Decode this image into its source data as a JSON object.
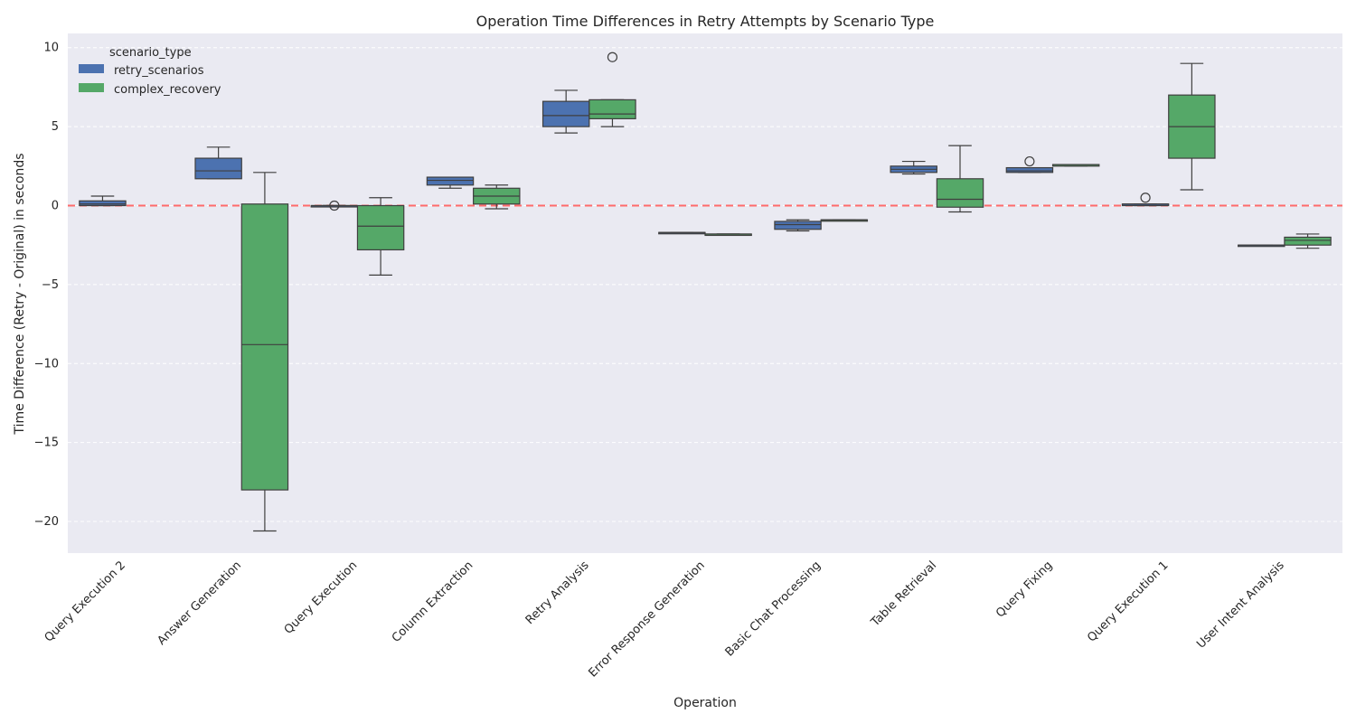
{
  "chart_data": {
    "type": "box",
    "title": "Operation Time Differences in Retry Attempts by Scenario Type",
    "xlabel": "Operation",
    "ylabel": "Time Difference (Retry - Original) in seconds",
    "ylim": [
      -22,
      10.9
    ],
    "yticks": [
      10,
      5,
      0,
      -5,
      -10,
      -15,
      -20
    ],
    "ytick_labels": [
      "10",
      "5",
      "0",
      "−5",
      "−10",
      "−15",
      "−20"
    ],
    "reference_line": 0,
    "grid": "horizontal, dashed",
    "legend": {
      "title": "scenario_type",
      "position": "top-left",
      "entries": [
        "retry_scenarios",
        "complex_recovery"
      ]
    },
    "categories": [
      "Query Execution 2",
      "Answer Generation",
      "Query Execution",
      "Column Extraction",
      "Retry Analysis",
      "Error Response Generation",
      "Basic Chat Processing",
      "Table Retrieval",
      "Query Fixing",
      "Query Execution 1",
      "User Intent Analysis"
    ],
    "series": [
      {
        "name": "retry_scenarios",
        "color": "#4c72b0",
        "boxes": [
          {
            "whislo": 0.0,
            "q1": 0.0,
            "med": 0.1,
            "q3": 0.3,
            "whishi": 0.6,
            "fliers": []
          },
          {
            "whislo": 1.7,
            "q1": 1.7,
            "med": 2.2,
            "q3": 3.0,
            "whishi": 3.7,
            "fliers": []
          },
          {
            "whislo": 0.0,
            "q1": 0.0,
            "med": 0.0,
            "q3": 0.0,
            "whishi": 0.0,
            "fliers": [
              0.0
            ]
          },
          {
            "whislo": 1.1,
            "q1": 1.3,
            "med": 1.6,
            "q3": 1.8,
            "whishi": 1.8,
            "fliers": []
          },
          {
            "whislo": 4.6,
            "q1": 5.0,
            "med": 5.7,
            "q3": 6.6,
            "whishi": 7.3,
            "fliers": []
          },
          {
            "whislo": -1.7,
            "q1": -1.7,
            "med": -1.7,
            "q3": -1.7,
            "whishi": -1.7,
            "fliers": []
          },
          {
            "whislo": -1.6,
            "q1": -1.5,
            "med": -1.2,
            "q3": -1.0,
            "whishi": -0.9,
            "fliers": []
          },
          {
            "whislo": 2.0,
            "q1": 2.1,
            "med": 2.3,
            "q3": 2.5,
            "whishi": 2.8,
            "fliers": []
          },
          {
            "whislo": 2.1,
            "q1": 2.1,
            "med": 2.2,
            "q3": 2.4,
            "whishi": 2.4,
            "fliers": [
              2.8
            ]
          },
          {
            "whislo": 0.0,
            "q1": 0.0,
            "med": 0.1,
            "q3": 0.1,
            "whishi": 0.1,
            "fliers": [
              0.5
            ]
          },
          {
            "whislo": -2.5,
            "q1": -2.5,
            "med": -2.5,
            "q3": -2.5,
            "whishi": -2.5,
            "fliers": []
          }
        ]
      },
      {
        "name": "complex_recovery",
        "color": "#55a868",
        "boxes": [
          null,
          {
            "whislo": -20.6,
            "q1": -18.0,
            "med": -8.8,
            "q3": 0.1,
            "whishi": 2.1,
            "fliers": []
          },
          {
            "whislo": -4.4,
            "q1": -2.8,
            "med": -1.3,
            "q3": 0.0,
            "whishi": 0.5,
            "fliers": []
          },
          {
            "whislo": -0.2,
            "q1": 0.1,
            "med": 0.6,
            "q3": 1.1,
            "whishi": 1.3,
            "fliers": []
          },
          {
            "whislo": 5.0,
            "q1": 5.5,
            "med": 5.8,
            "q3": 6.7,
            "whishi": 6.7,
            "fliers": [
              9.4
            ]
          },
          {
            "whislo": -1.8,
            "q1": -1.8,
            "med": -1.8,
            "q3": -1.8,
            "whishi": -1.8,
            "fliers": []
          },
          {
            "whislo": -0.9,
            "q1": -0.9,
            "med": -0.9,
            "q3": -0.9,
            "whishi": -0.9,
            "fliers": []
          },
          {
            "whislo": -0.4,
            "q1": -0.1,
            "med": 0.4,
            "q3": 1.7,
            "whishi": 3.8,
            "fliers": []
          },
          {
            "whislo": 2.5,
            "q1": 2.5,
            "med": 2.6,
            "q3": 2.6,
            "whishi": 2.6,
            "fliers": []
          },
          {
            "whislo": 1.0,
            "q1": 3.0,
            "med": 5.0,
            "q3": 7.0,
            "whishi": 9.0,
            "fliers": []
          },
          {
            "whislo": -2.7,
            "q1": -2.5,
            "med": -2.2,
            "q3": -2.0,
            "whishi": -1.8,
            "fliers": []
          }
        ]
      }
    ]
  }
}
